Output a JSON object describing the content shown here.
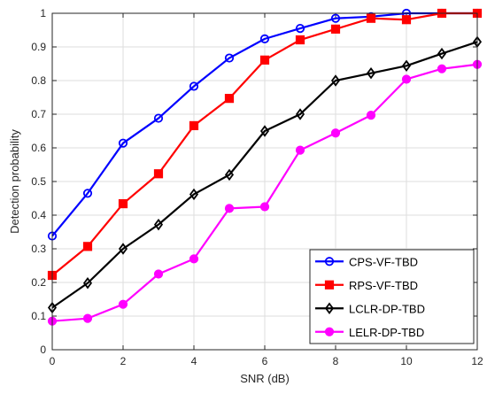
{
  "chart_data": {
    "type": "line",
    "title": "",
    "xlabel": "SNR (dB)",
    "ylabel": "Detection probability",
    "xlim": [
      0,
      12
    ],
    "ylim": [
      0,
      1
    ],
    "x_ticks": [
      0,
      2,
      4,
      6,
      8,
      10,
      12
    ],
    "y_ticks": [
      0,
      0.1,
      0.2,
      0.3,
      0.4,
      0.5,
      0.6,
      0.7,
      0.8,
      0.9,
      1
    ],
    "grid": true,
    "legend_position": "bottom-right",
    "x": [
      0,
      1,
      2,
      3,
      4,
      5,
      6,
      7,
      8,
      9,
      10,
      11,
      12
    ],
    "series": [
      {
        "name": "CPS-VF-TBD",
        "color": "#0000ff",
        "marker": "circle-open",
        "values": [
          0.338,
          0.465,
          0.614,
          0.688,
          0.783,
          0.867,
          0.924,
          0.955,
          0.985,
          0.99,
          1.0,
          1.0,
          1.0
        ]
      },
      {
        "name": "RPS-VF-TBD",
        "color": "#ff0000",
        "marker": "square",
        "values": [
          0.221,
          0.307,
          0.434,
          0.523,
          0.666,
          0.747,
          0.861,
          0.921,
          0.953,
          0.985,
          0.981,
          1.0,
          1.0
        ]
      },
      {
        "name": "LCLR-DP-TBD",
        "color": "#000000",
        "marker": "diamond-open",
        "values": [
          0.125,
          0.198,
          0.3,
          0.372,
          0.462,
          0.52,
          0.65,
          0.7,
          0.8,
          0.822,
          0.844,
          0.88,
          0.915
        ]
      },
      {
        "name": "LELR-DP-TBD",
        "color": "#ff00ff",
        "marker": "circle",
        "values": [
          0.085,
          0.093,
          0.135,
          0.225,
          0.27,
          0.42,
          0.425,
          0.593,
          0.644,
          0.697,
          0.804,
          0.835,
          0.848
        ]
      }
    ]
  }
}
